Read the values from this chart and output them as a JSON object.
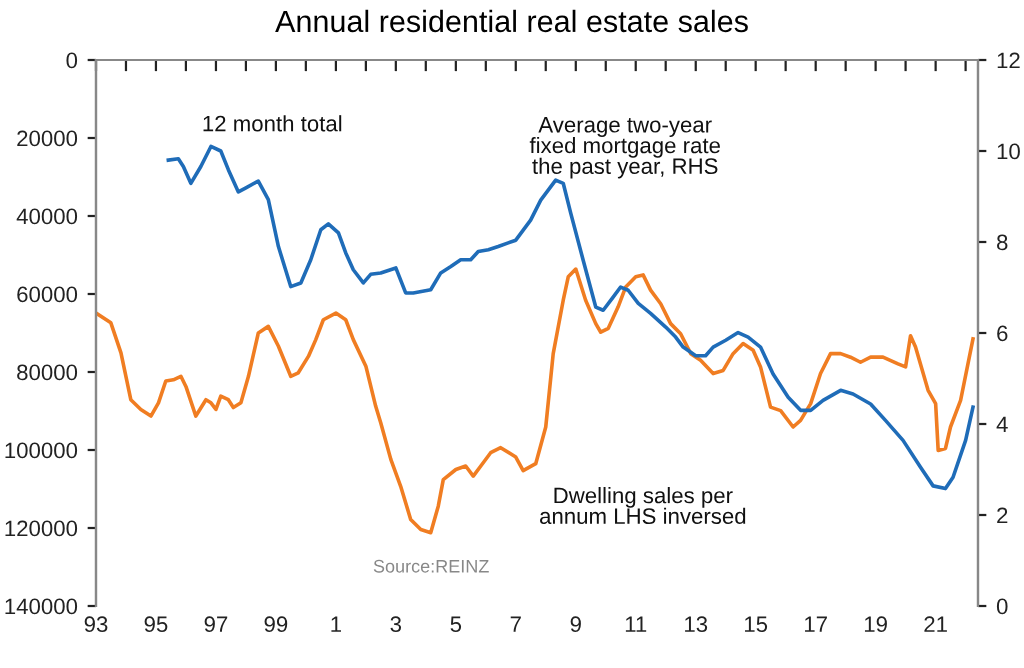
{
  "chart_data": {
    "type": "line",
    "title": "Annual residential real estate sales",
    "annotations": [
      "12 month total",
      "Average two-year\nfixed mortgage rate\nthe past year, RHS",
      "Dwelling sales per\nannum LHS inversed",
      "Source:REINZ"
    ],
    "xlim": [
      "1993-01",
      "2022-06"
    ],
    "xticks": [
      {
        "value": "1993",
        "label": "93"
      },
      {
        "value": "1994",
        "label": null
      },
      {
        "value": "1995",
        "label": "95"
      },
      {
        "value": "1996",
        "label": null
      },
      {
        "value": "1997",
        "label": "97"
      },
      {
        "value": "1998",
        "label": null
      },
      {
        "value": "1999",
        "label": "99"
      },
      {
        "value": "2000",
        "label": null
      },
      {
        "value": "2001",
        "label": "1"
      },
      {
        "value": "2002",
        "label": null
      },
      {
        "value": "2003",
        "label": "3"
      },
      {
        "value": "2004",
        "label": null
      },
      {
        "value": "2005",
        "label": "5"
      },
      {
        "value": "2006",
        "label": null
      },
      {
        "value": "2007",
        "label": "7"
      },
      {
        "value": "2008",
        "label": null
      },
      {
        "value": "2009",
        "label": "9"
      },
      {
        "value": "2010",
        "label": null
      },
      {
        "value": "2011",
        "label": "11"
      },
      {
        "value": "2012",
        "label": null
      },
      {
        "value": "2013",
        "label": "13"
      },
      {
        "value": "2014",
        "label": null
      },
      {
        "value": "2015",
        "label": "15"
      },
      {
        "value": "2016",
        "label": null
      },
      {
        "value": "2017",
        "label": "17"
      },
      {
        "value": "2018",
        "label": null
      },
      {
        "value": "2019",
        "label": "19"
      },
      {
        "value": "2020",
        "label": null
      },
      {
        "value": "2021",
        "label": "21"
      },
      {
        "value": "2022",
        "label": null
      }
    ],
    "ylim": [
      140000,
      0
    ],
    "yticks": [
      0,
      20000,
      40000,
      60000,
      80000,
      100000,
      120000,
      140000
    ],
    "y2lim": [
      0,
      12
    ],
    "y2ticks": [
      0,
      2,
      4,
      6,
      8,
      10,
      12
    ],
    "grid": false,
    "marker": "none",
    "line_style": "solid",
    "series": [
      {
        "color": "#f07d22",
        "x": [
          "1993-01",
          "1993-07",
          "1993-11",
          "1994-03",
          "1994-07",
          "1994-11",
          "1995-02",
          "1995-05",
          "1995-08",
          "1995-11",
          "1996-01",
          "1996-05",
          "1996-09",
          "1996-11",
          "1997-01",
          "1997-03",
          "1997-06",
          "1997-08",
          "1997-11",
          "1998-02",
          "1998-06",
          "1998-10",
          "1999-02",
          "1999-07",
          "1999-10",
          "2000-02",
          "2000-05",
          "2000-08",
          "2001-01",
          "2001-05",
          "2001-08",
          "2002-01",
          "2002-05",
          "2002-07",
          "2002-11",
          "2003-03",
          "2003-07",
          "2003-11",
          "2004-03",
          "2004-06",
          "2004-08",
          "2005-01",
          "2005-05",
          "2005-08",
          "2005-11",
          "2006-03",
          "2006-07",
          "2007-01",
          "2007-04",
          "2007-09",
          "2008-01",
          "2008-04",
          "2008-08",
          "2008-10",
          "2009-01",
          "2009-05",
          "2009-09",
          "2009-11",
          "2010-02",
          "2010-06",
          "2010-09",
          "2011-01",
          "2011-04",
          "2011-07",
          "2011-11",
          "2012-03",
          "2012-07",
          "2012-11",
          "2013-03",
          "2013-08",
          "2013-12",
          "2014-04",
          "2014-08",
          "2014-12",
          "2015-03",
          "2015-07",
          "2015-11",
          "2016-04",
          "2016-07",
          "2016-11",
          "2017-03",
          "2017-07",
          "2017-11",
          "2018-03",
          "2018-07",
          "2018-11",
          "2019-04",
          "2019-10",
          "2020-01",
          "2020-03",
          "2020-05",
          "2020-10",
          "2021-01",
          "2021-02",
          "2021-05",
          "2021-07",
          "2021-11",
          "2022-04"
        ],
        "values": [
          64900,
          67400,
          75100,
          87100,
          89600,
          91300,
          87900,
          82300,
          82000,
          81100,
          83700,
          91300,
          87100,
          87900,
          89600,
          86200,
          87100,
          89100,
          87900,
          81100,
          70000,
          68300,
          73400,
          81100,
          80200,
          76000,
          71700,
          66600,
          64900,
          66600,
          71700,
          78500,
          88800,
          93000,
          102400,
          109300,
          117800,
          120400,
          121200,
          114400,
          107600,
          105000,
          104100,
          106700,
          104100,
          100700,
          99400,
          101800,
          105300,
          103500,
          94100,
          75300,
          61600,
          55600,
          53600,
          61600,
          67600,
          69800,
          68800,
          63300,
          58200,
          55600,
          55100,
          59000,
          62500,
          67600,
          70200,
          75300,
          77000,
          80400,
          79600,
          75300,
          72700,
          74400,
          78700,
          89000,
          89900,
          94100,
          92400,
          88100,
          80400,
          75300,
          75300,
          76200,
          77500,
          76200,
          76200,
          77900,
          78700,
          70700,
          73600,
          84700,
          88100,
          100100,
          99600,
          94100,
          87300,
          71500
        ]
      },
      {
        "color": "#1f6cb8",
        "axis": "y2",
        "x": [
          "1995-06",
          "1995-10",
          "1995-12",
          "1996-03",
          "1996-07",
          "1996-11",
          "1997-03",
          "1997-06",
          "1997-10",
          "1998-01",
          "1998-06",
          "1998-10",
          "1999-02",
          "1999-07",
          "1999-11",
          "2000-03",
          "2000-07",
          "2000-10",
          "2001-02",
          "2001-05",
          "2001-08",
          "2001-12",
          "2002-03",
          "2002-07",
          "2003-01",
          "2003-05",
          "2003-08",
          "2004-03",
          "2004-07",
          "2004-11",
          "2005-03",
          "2005-07",
          "2005-10",
          "2006-02",
          "2006-06",
          "2006-10",
          "2007-01",
          "2007-07",
          "2007-11",
          "2008-05",
          "2008-08",
          "2008-11",
          "2009-04",
          "2009-09",
          "2009-12",
          "2010-04",
          "2010-07",
          "2010-10",
          "2011-02",
          "2011-07",
          "2012-01",
          "2012-05",
          "2012-08",
          "2013-01",
          "2013-05",
          "2013-08",
          "2014-01",
          "2014-06",
          "2014-10",
          "2015-03",
          "2015-08",
          "2016-02",
          "2016-07",
          "2016-11",
          "2017-04",
          "2017-11",
          "2018-04",
          "2018-11",
          "2019-05",
          "2019-12",
          "2020-07",
          "2020-12",
          "2021-05",
          "2021-08",
          "2022-01",
          "2022-04"
        ],
        "values": [
          9.8,
          9.83,
          9.66,
          9.29,
          9.66,
          10.1,
          10.0,
          9.59,
          9.1,
          9.19,
          9.34,
          8.93,
          7.9,
          7.02,
          7.1,
          7.61,
          8.27,
          8.4,
          8.2,
          7.76,
          7.39,
          7.1,
          7.29,
          7.32,
          7.43,
          6.88,
          6.88,
          6.95,
          7.32,
          7.46,
          7.61,
          7.61,
          7.79,
          7.83,
          7.9,
          7.98,
          8.04,
          8.48,
          8.92,
          9.36,
          9.29,
          8.63,
          7.6,
          6.57,
          6.5,
          6.79,
          7.01,
          6.94,
          6.65,
          6.43,
          6.13,
          5.91,
          5.69,
          5.5,
          5.5,
          5.69,
          5.84,
          6.01,
          5.91,
          5.69,
          5.1,
          4.59,
          4.3,
          4.3,
          4.52,
          4.74,
          4.66,
          4.44,
          4.08,
          3.64,
          3.05,
          2.64,
          2.58,
          2.83,
          3.64,
          4.37
        ]
      }
    ]
  }
}
